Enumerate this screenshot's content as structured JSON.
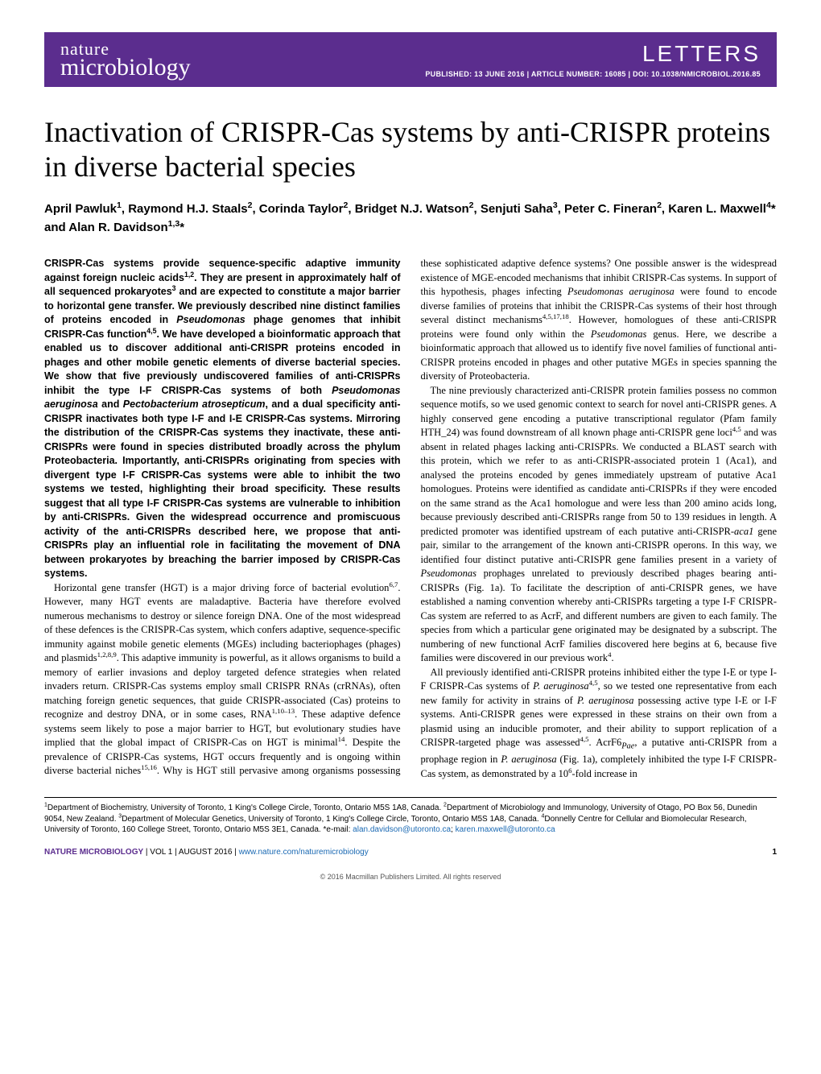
{
  "header": {
    "journal_top": "nature",
    "journal_bottom": "microbiology",
    "section": "LETTERS",
    "pub_line": "PUBLISHED: 13 JUNE 2016 | ARTICLE NUMBER: 16085 | DOI: 10.1038/NMICROBIOL.2016.85",
    "bg_color": "#5b2d8e",
    "text_color": "#ffffff"
  },
  "article": {
    "title": "Inactivation of CRISPR-Cas systems by anti-CRISPR proteins in diverse bacterial species",
    "authors_html": "April Pawluk<sup>1</sup>, Raymond H.J. Staals<sup>2</sup>, Corinda Taylor<sup>2</sup>, Bridget N.J. Watson<sup>2</sup>, Senjuti Saha<sup>3</sup>, Peter C. Fineran<sup>2</sup>, Karen L. Maxwell<sup>4</sup>* and Alan R. Davidson<sup>1,3</sup>*",
    "abstract_html": "CRISPR-Cas systems provide sequence-specific adaptive immunity against foreign nucleic acids<sup>1,2</sup>. They are present in approximately half of all sequenced prokaryotes<sup>3</sup> and are expected to constitute a major barrier to horizontal gene transfer. We previously described nine distinct families of proteins encoded in <i>Pseudomonas</i> phage genomes that inhibit CRISPR-Cas function<sup>4,5</sup>. We have developed a bioinformatic approach that enabled us to discover additional anti-CRISPR proteins encoded in phages and other mobile genetic elements of diverse bacterial species. We show that five previously undiscovered families of anti-CRISPRs inhibit the type I-F CRISPR-Cas systems of both <i>Pseudomonas aeruginosa</i> and <i>Pectobacterium atrosepticum</i>, and a dual specificity anti-CRISPR inactivates both type I-F and I-E CRISPR-Cas systems. Mirroring the distribution of the CRISPR-Cas systems they inactivate, these anti-CRISPRs were found in species distributed broadly across the phylum Proteobacteria. Importantly, anti-CRISPRs originating from species with divergent type I-F CRISPR-Cas systems were able to inhibit the two systems we tested, highlighting their broad specificity. These results suggest that all type I-F CRISPR-Cas systems are vulnerable to inhibition by anti-CRISPRs. Given the widespread occurrence and promiscuous activity of the anti-CRISPRs described here, we propose that anti-CRISPRs play an influential role in facilitating the movement of DNA between prokaryotes by breaching the barrier imposed by CRISPR-Cas systems.",
    "p1_html": "Horizontal gene transfer (HGT) is a major driving force of bacterial evolution<sup>6,7</sup>. However, many HGT events are maladaptive. Bacteria have therefore evolved numerous mechanisms to destroy or silence foreign DNA. One of the most widespread of these defences is the CRISPR-Cas system, which confers adaptive, sequence-specific immunity against mobile genetic elements (MGEs) including bacteriophages (phages) and plasmids<sup>1,2,8,9</sup>. This adaptive immunity is powerful, as it allows organisms to build a memory of earlier invasions and deploy targeted defence strategies when related invaders return. CRISPR-Cas systems employ small CRISPR RNAs (crRNAs), often matching foreign genetic sequences, that guide CRISPR-associated (Cas) proteins to recognize and destroy DNA, or in some cases, RNA<sup>1,10–13</sup>. These adaptive defence systems seem likely to pose a major barrier to HGT, but evolutionary studies have implied that the global impact of CRISPR-Cas on HGT is minimal<sup>14</sup>. Despite the prevalence of CRISPR-Cas systems, HGT occurs frequently and is ongoing within diverse bacterial niches<sup>15,16</sup>. Why is HGT still pervasive among organisms possessing these sophisticated adaptive defence systems? One possible answer is the widespread existence of MGE-encoded mechanisms that inhibit CRISPR-Cas systems. In support of this hypothesis, phages infecting <i>Pseudomonas aeruginosa</i> were found to encode diverse families of proteins that inhibit the CRISPR-Cas systems of their host through several distinct mechanisms<sup>4,5,17,18</sup>. However, homologues of these anti-CRISPR proteins were found only within the <i>Pseudomonas</i> genus. Here, we describe a bioinformatic approach that allowed us to identify five novel families of functional anti-CRISPR proteins encoded in phages and other putative MGEs in species spanning the diversity of Proteobacteria.",
    "p2_html": "The nine previously characterized anti-CRISPR protein families possess no common sequence motifs, so we used genomic context to search for novel anti-CRISPR genes. A highly conserved gene encoding a putative transcriptional regulator (Pfam family HTH_24) was found downstream of all known phage anti-CRISPR gene loci<sup>4,5</sup> and was absent in related phages lacking anti-CRISPRs. We conducted a BLAST search with this protein, which we refer to as anti-CRISPR-associated protein 1 (Aca1), and analysed the proteins encoded by genes immediately upstream of putative Aca1 homologues. Proteins were identified as candidate anti-CRISPRs if they were encoded on the same strand as the Aca1 homologue and were less than 200 amino acids long, because previously described anti-CRISPRs range from 50 to 139 residues in length. A predicted promoter was identified upstream of each putative anti-CRISPR-<i>aca1</i> gene pair, similar to the arrangement of the known anti-CRISPR operons. In this way, we identified four distinct putative anti-CRISPR gene families present in a variety of <i>Pseudomonas</i> prophages unrelated to previously described phages bearing anti-CRISPRs (Fig. 1a). To facilitate the description of anti-CRISPR genes, we have established a naming convention whereby anti-CRISPRs targeting a type I-F CRISPR-Cas system are referred to as AcrF, and different numbers are given to each family. The species from which a particular gene originated may be designated by a subscript. The numbering of new functional AcrF families discovered here begins at 6, because five families were discovered in our previous work<sup>4</sup>.",
    "p3_html": "All previously identified anti-CRISPR proteins inhibited either the type I-E or type I-F CRISPR-Cas systems of <i>P. aeruginosa</i><sup>4,5</sup>, so we tested one representative from each new family for activity in strains of <i>P. aeruginosa</i> possessing active type I-E or I-F systems. Anti-CRISPR genes were expressed in these strains on their own from a plasmid using an inducible promoter, and their ability to support replication of a CRISPR-targeted phage was assessed<sup>4,5</sup>. AcrF6<sub><i>Pae</i></sub>, a putative anti-CRISPR from a prophage region in <i>P. aeruginosa</i> (Fig. 1a), completely inhibited the type I-F CRISPR-Cas system, as demonstrated by a 10<sup>6</sup>-fold increase in"
  },
  "affiliations_html": "<sup>1</sup>Department of Biochemistry, University of Toronto, 1 King's College Circle, Toronto, Ontario M5S 1A8, Canada. <sup>2</sup>Department of Microbiology and Immunology, University of Otago, PO Box 56, Dunedin 9054, New Zealand. <sup>3</sup>Department of Molecular Genetics, University of Toronto, 1 King's College Circle, Toronto, Ontario M5S 1A8, Canada. <sup>4</sup>Donnelly Centre for Cellular and Biomolecular Research, University of Toronto, 160 College Street, Toronto, Ontario M5S 3E1, Canada. *e-mail: <span class=\"email-link\">alan.davidson@utoronto.ca</span>; <span class=\"email-link\">karen.maxwell@utoronto.ca</span>",
  "footer": {
    "brand": "NATURE MICROBIOLOGY",
    "issue": " | VOL 1 | AUGUST 2016 | ",
    "url": "www.nature.com/naturemicrobiology",
    "page_number": "1",
    "copyright": "© 2016 Macmillan Publishers Limited. All rights reserved",
    "link_color": "#1a69b3",
    "brand_color": "#5b2d8e"
  }
}
